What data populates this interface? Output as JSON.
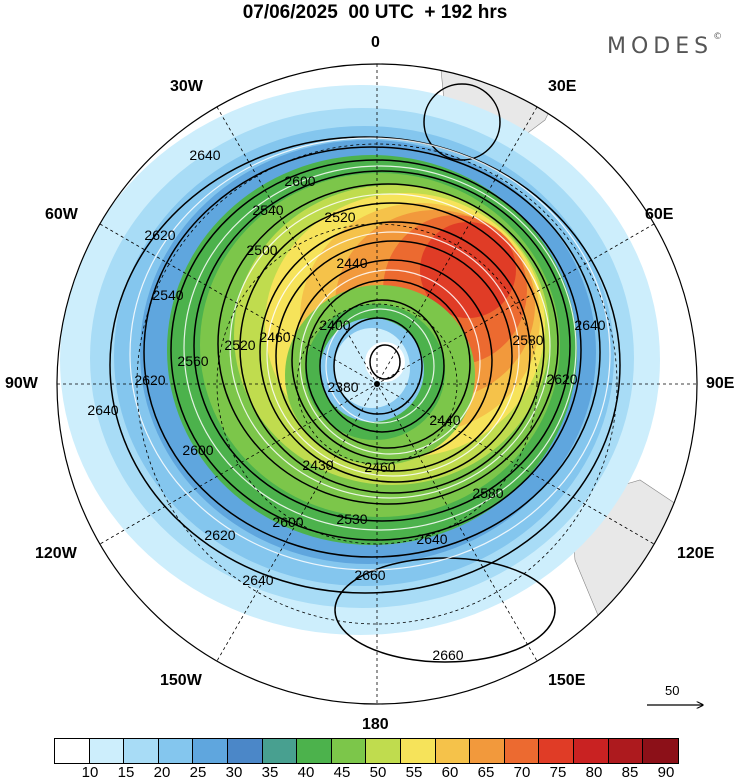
{
  "title": "07/06/2025  00 UTC  + 192 hrs",
  "brand": "MODES",
  "brand_mark": "©",
  "longitude_labels": {
    "l0": "0",
    "l30e": "30E",
    "l60e": "60E",
    "l90e": "90E",
    "l120e": "120E",
    "l150e": "150E",
    "l180": "180",
    "l150w": "150W",
    "l120w": "120W",
    "l90w": "90W",
    "l60w": "60W",
    "l30w": "30W"
  },
  "contour_labels": [
    "2640",
    "2600",
    "2520",
    "2440",
    "2540",
    "2620",
    "2500",
    "2400",
    "2580",
    "2560",
    "2460",
    "2380",
    "2540",
    "2520",
    "2440",
    "2620",
    "2640",
    "2600",
    "2430",
    "2460",
    "2580",
    "2640",
    "2530",
    "2620",
    "2600",
    "2640",
    "2660",
    "2660",
    "2620",
    "2640"
  ],
  "colorbar": {
    "colors": [
      "#ffffff",
      "#cdeefc",
      "#a8dcf6",
      "#84c6ee",
      "#5fa6de",
      "#4b87c8",
      "#48a090",
      "#4cb24c",
      "#7cc64a",
      "#c0dc4e",
      "#f6e35a",
      "#f5c24a",
      "#f2993c",
      "#ec6a30",
      "#e03c26",
      "#c92222",
      "#ad1a1e",
      "#8c1018"
    ],
    "labels": [
      "10",
      "15",
      "20",
      "25",
      "30",
      "35",
      "40",
      "45",
      "50",
      "55",
      "60",
      "65",
      "70",
      "75",
      "80",
      "85",
      "90"
    ]
  },
  "reference_vector": {
    "label": "50"
  }
}
